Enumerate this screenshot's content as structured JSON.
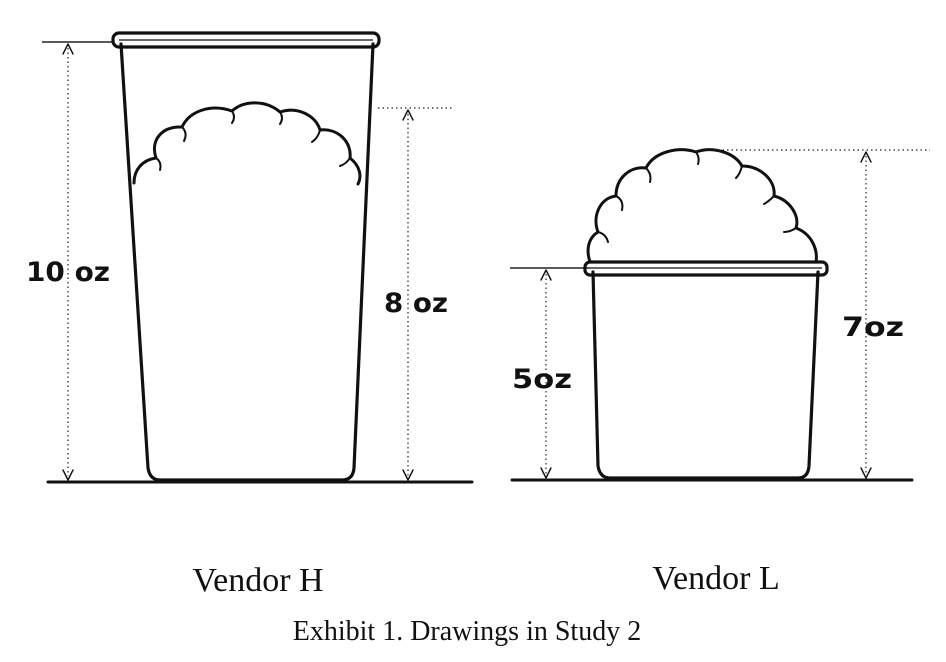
{
  "vendors": [
    {
      "name": "Vendor H",
      "cup_capacity_label": "10 oz",
      "ice_cream_label": "8 oz"
    },
    {
      "name": "Vendor L",
      "cup_capacity_label": "5oz",
      "ice_cream_label": "7oz"
    }
  ],
  "caption": "Exhibit 1. Drawings in Study 2",
  "colors": {
    "ink": "#111111"
  }
}
